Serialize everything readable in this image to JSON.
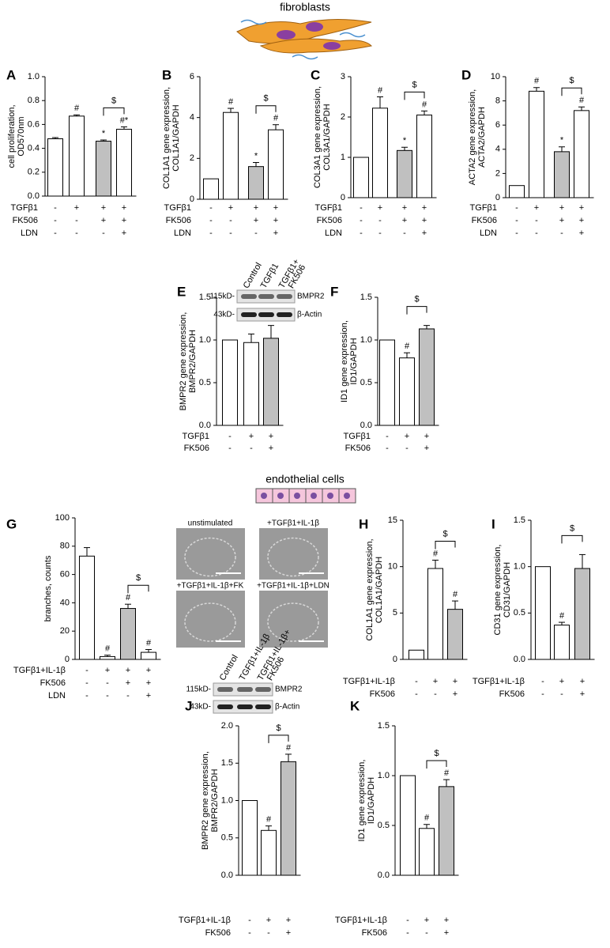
{
  "illustrations": {
    "fibroblasts": "fibroblasts",
    "endothelial": "endothelial cells"
  },
  "chart_data": [
    {
      "type": "bar",
      "label": "A",
      "y_label": [
        "cell proliferation,",
        "OD570nm"
      ],
      "ylim": [
        0,
        1.0
      ],
      "yticks": [
        {
          "value": 0,
          "label": "0.0"
        },
        0.2,
        0.4,
        0.6,
        0.8,
        {
          "value": 1,
          "label": "1.0"
        }
      ],
      "values": [
        0.48,
        0.67,
        0.46,
        0.56
      ],
      "errors": [
        0.01,
        0.01,
        0.01,
        0.02
      ],
      "colors": [
        "#ffffff",
        "#ffffff",
        "#c0c0c0",
        "#ffffff"
      ],
      "annotations": [
        null,
        "#",
        "*",
        "#*"
      ],
      "bracket": {
        "bars": [
          2,
          3
        ],
        "label": "$"
      },
      "treatments": [
        {
          "name": "TGFβ1",
          "marks": [
            "-",
            "+",
            "+",
            "+"
          ]
        },
        {
          "name": "FK506",
          "marks": [
            "-",
            "-",
            "+",
            "+"
          ]
        },
        {
          "name": "LDN",
          "marks": [
            "-",
            "-",
            "-",
            "+"
          ]
        }
      ]
    },
    {
      "type": "bar",
      "label": "B",
      "y_label": [
        "COL1A1 gene expression,",
        "COL1A1/GAPDH"
      ],
      "ylim": [
        0,
        6
      ],
      "yticks": [
        0,
        2,
        4,
        6
      ],
      "values": [
        1.0,
        4.25,
        1.6,
        3.4
      ],
      "errors": [
        null,
        0.2,
        0.2,
        0.25
      ],
      "colors": [
        "#ffffff",
        "#ffffff",
        "#c0c0c0",
        "#ffffff"
      ],
      "annotations": [
        null,
        "#",
        "*",
        "#"
      ],
      "bracket": {
        "bars": [
          2,
          3
        ],
        "label": "$"
      },
      "treatments": [
        {
          "name": "TGFβ1",
          "marks": [
            "-",
            "+",
            "+",
            "+"
          ]
        },
        {
          "name": "FK506",
          "marks": [
            "-",
            "-",
            "+",
            "+"
          ]
        },
        {
          "name": "LDN",
          "marks": [
            "-",
            "-",
            "-",
            "+"
          ]
        }
      ]
    },
    {
      "type": "bar",
      "label": "C",
      "y_label": [
        "COL3A1 gene expression,",
        "COL3A1/GAPDH"
      ],
      "ylim": [
        0,
        3
      ],
      "yticks": [
        0,
        1,
        2,
        3
      ],
      "values": [
        1.0,
        2.22,
        1.17,
        2.05
      ],
      "errors": [
        null,
        0.28,
        0.08,
        0.1
      ],
      "colors": [
        "#ffffff",
        "#ffffff",
        "#c0c0c0",
        "#ffffff"
      ],
      "annotations": [
        null,
        "#",
        "*",
        "#"
      ],
      "bracket": {
        "bars": [
          2,
          3
        ],
        "label": "$"
      },
      "treatments": [
        {
          "name": "TGFβ1",
          "marks": [
            "-",
            "+",
            "+",
            "+"
          ]
        },
        {
          "name": "FK506",
          "marks": [
            "-",
            "-",
            "+",
            "+"
          ]
        },
        {
          "name": "LDN",
          "marks": [
            "-",
            "-",
            "-",
            "+"
          ]
        }
      ]
    },
    {
      "type": "bar",
      "label": "D",
      "y_label": [
        "ACTA2 gene expression,",
        "ACTA2/GAPDH"
      ],
      "ylim": [
        0,
        10
      ],
      "yticks": [
        0,
        2,
        4,
        6,
        8,
        10
      ],
      "values": [
        1.0,
        8.8,
        3.8,
        7.2
      ],
      "errors": [
        null,
        0.3,
        0.4,
        0.3
      ],
      "colors": [
        "#ffffff",
        "#ffffff",
        "#c0c0c0",
        "#ffffff"
      ],
      "annotations": [
        null,
        "#",
        "*",
        "#"
      ],
      "bracket": {
        "bars": [
          2,
          3
        ],
        "label": "$"
      },
      "treatments": [
        {
          "name": "TGFβ1",
          "marks": [
            "-",
            "+",
            "+",
            "+"
          ]
        },
        {
          "name": "FK506",
          "marks": [
            "-",
            "-",
            "+",
            "+"
          ]
        },
        {
          "name": "LDN",
          "marks": [
            "-",
            "-",
            "-",
            "+"
          ]
        }
      ]
    },
    {
      "type": "bar",
      "label": "E",
      "y_label": [
        "BMPR2 gene expression,",
        "BMPR2/GAPDH"
      ],
      "ylim": [
        0,
        1.5
      ],
      "yticks": [
        {
          "value": 0,
          "label": "0.0"
        },
        0.5,
        {
          "value": 1,
          "label": "1.0"
        },
        1.5
      ],
      "values": [
        1.0,
        0.97,
        1.02
      ],
      "errors": [
        null,
        0.1,
        0.15
      ],
      "colors": [
        "#ffffff",
        "#ffffff",
        "#c0c0c0"
      ],
      "annotations": [
        null,
        null,
        null
      ],
      "blot": {
        "lanes": [
          [
            "Control"
          ],
          [
            "TGFβ1"
          ],
          [
            "TGFβ1+",
            "FK506"
          ]
        ],
        "bands": [
          {
            "size": "115kD-",
            "protein": "BMPR2"
          },
          {
            "size": "43kD-",
            "protein": "β-Actin"
          }
        ]
      },
      "treatments": [
        {
          "name": "TGFβ1",
          "marks": [
            "-",
            "+",
            "+"
          ]
        },
        {
          "name": "FK506",
          "marks": [
            "-",
            "-",
            "+"
          ]
        }
      ]
    },
    {
      "type": "bar",
      "label": "F",
      "y_label": [
        "ID1 gene expression,",
        "ID1/GAPDH"
      ],
      "ylim": [
        0,
        1.5
      ],
      "yticks": [
        {
          "value": 0,
          "label": "0.0"
        },
        0.5,
        {
          "value": 1,
          "label": "1.0"
        },
        1.5
      ],
      "values": [
        1.0,
        0.79,
        1.13
      ],
      "errors": [
        null,
        0.06,
        0.04
      ],
      "colors": [
        "#ffffff",
        "#ffffff",
        "#c0c0c0"
      ],
      "annotations": [
        null,
        "#",
        null
      ],
      "bracket": {
        "bars": [
          1,
          2
        ],
        "label": "$"
      },
      "treatments": [
        {
          "name": "TGFβ1",
          "marks": [
            "-",
            "+",
            "+"
          ]
        },
        {
          "name": "FK506",
          "marks": [
            "-",
            "-",
            "+"
          ]
        }
      ]
    },
    {
      "type": "bar",
      "label": "G",
      "y_label": [
        "branches, counts"
      ],
      "ylim": [
        0,
        100
      ],
      "yticks": [
        0,
        20,
        40,
        60,
        80,
        100
      ],
      "values": [
        73,
        2,
        36,
        5
      ],
      "errors": [
        6,
        1,
        3,
        2
      ],
      "colors": [
        "#ffffff",
        "#ffffff",
        "#c0c0c0",
        "#ffffff"
      ],
      "annotations": [
        null,
        "#",
        "#",
        "#"
      ],
      "bracket": {
        "bars": [
          2,
          3
        ],
        "label": "$"
      },
      "micrographs": [
        "unstimulated",
        "+TGFβ1+IL-1β",
        "+TGFβ1+IL-1β+FK",
        "+TGFβ1+IL-1β+LDN"
      ],
      "treatments": [
        {
          "name": "TGFβ1+IL-1β",
          "marks": [
            "-",
            "+",
            "+",
            "+"
          ]
        },
        {
          "name": "FK506",
          "marks": [
            "-",
            "-",
            "+",
            "+"
          ]
        },
        {
          "name": "LDN",
          "marks": [
            "-",
            "-",
            "-",
            "+"
          ]
        }
      ]
    },
    {
      "type": "bar",
      "label": "H",
      "y_label": [
        "COL1A1 gene expression,",
        "COL1A1/GAPDH"
      ],
      "ylim": [
        0,
        15
      ],
      "yticks": [
        0,
        5,
        10,
        15
      ],
      "values": [
        1.0,
        9.8,
        5.4
      ],
      "errors": [
        null,
        0.9,
        0.9
      ],
      "colors": [
        "#ffffff",
        "#ffffff",
        "#c0c0c0"
      ],
      "annotations": [
        null,
        "#",
        "#"
      ],
      "bracket": {
        "bars": [
          1,
          2
        ],
        "label": "$"
      },
      "treatments": [
        {
          "name": "TGFβ1+IL-1β",
          "marks": [
            "-",
            "+",
            "+"
          ]
        },
        {
          "name": "FK506",
          "marks": [
            "-",
            "-",
            "+"
          ]
        }
      ]
    },
    {
      "type": "bar",
      "label": "I",
      "y_label": [
        "CD31 gene expression,",
        "CD31/GAPDH"
      ],
      "ylim": [
        0,
        1.5
      ],
      "yticks": [
        {
          "value": 0,
          "label": "0.0"
        },
        0.5,
        {
          "value": 1,
          "label": "1.0"
        },
        1.5
      ],
      "values": [
        1.0,
        0.37,
        0.98
      ],
      "errors": [
        null,
        0.03,
        0.15
      ],
      "colors": [
        "#ffffff",
        "#ffffff",
        "#c0c0c0"
      ],
      "annotations": [
        null,
        "#",
        null
      ],
      "bracket": {
        "bars": [
          1,
          2
        ],
        "label": "$"
      },
      "treatments": [
        {
          "name": "TGFβ1+IL-1β",
          "marks": [
            "-",
            "+",
            "+"
          ]
        },
        {
          "name": "FK506",
          "marks": [
            "-",
            "-",
            "+"
          ]
        }
      ]
    },
    {
      "type": "bar",
      "label": "J",
      "y_label": [
        "BMPR2 gene expression,",
        "BMPR2/GAPDH"
      ],
      "ylim": [
        0,
        2.0
      ],
      "yticks": [
        {
          "value": 0,
          "label": "0.0"
        },
        0.5,
        {
          "value": 1,
          "label": "1.0"
        },
        1.5,
        {
          "value": 2,
          "label": "2.0"
        }
      ],
      "values": [
        1.0,
        0.6,
        1.52
      ],
      "errors": [
        null,
        0.06,
        0.1
      ],
      "colors": [
        "#ffffff",
        "#ffffff",
        "#c0c0c0"
      ],
      "annotations": [
        null,
        "#",
        "#"
      ],
      "bracket": {
        "bars": [
          1,
          2
        ],
        "label": "$"
      },
      "blot": {
        "lanes": [
          [
            "Control"
          ],
          [
            "TGFβ1+IL-1β"
          ],
          [
            "TGFβ1+IL-1β+",
            "FK506"
          ]
        ],
        "bands": [
          {
            "size": "115kD-",
            "protein": "BMPR2"
          },
          {
            "size": "43kD-",
            "protein": "β-Actin"
          }
        ]
      },
      "treatments": [
        {
          "name": "TGFβ1+IL-1β",
          "marks": [
            "-",
            "+",
            "+"
          ]
        },
        {
          "name": "FK506",
          "marks": [
            "-",
            "-",
            "+"
          ]
        }
      ]
    },
    {
      "type": "bar",
      "label": "K",
      "y_label": [
        "ID1 gene expression,",
        "ID1/GAPDH"
      ],
      "ylim": [
        0,
        1.5
      ],
      "yticks": [
        {
          "value": 0,
          "label": "0.0"
        },
        0.5,
        {
          "value": 1,
          "label": "1.0"
        },
        1.5
      ],
      "values": [
        1.0,
        0.47,
        0.89
      ],
      "errors": [
        null,
        0.04,
        0.07
      ],
      "colors": [
        "#ffffff",
        "#ffffff",
        "#c0c0c0"
      ],
      "annotations": [
        null,
        "#",
        "#"
      ],
      "bracket": {
        "bars": [
          1,
          2
        ],
        "label": "$"
      },
      "treatments": [
        {
          "name": "TGFβ1+IL-1β",
          "marks": [
            "-",
            "+",
            "+"
          ]
        },
        {
          "name": "FK506",
          "marks": [
            "-",
            "-",
            "+"
          ]
        }
      ]
    }
  ]
}
